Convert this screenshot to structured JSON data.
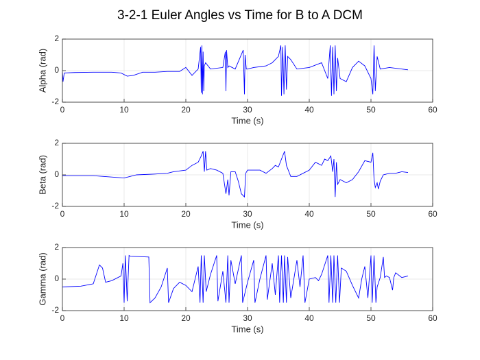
{
  "title": "3-2-1 Euler Angles vs Time for B to A DCM",
  "chart_data": [
    {
      "type": "line",
      "xlabel": "Time (s)",
      "ylabel": "Alpha (rad)",
      "x": [
        0,
        0.1,
        0.3,
        2,
        5,
        8,
        9.5,
        10.5,
        11.5,
        13,
        15,
        17,
        19,
        20,
        21,
        22,
        22.4,
        22.5,
        22.6,
        22.7,
        22.8,
        22.9,
        23,
        23.2,
        24,
        26,
        26.4,
        26.5,
        26.6,
        26.8,
        27,
        28,
        29.3,
        29.5,
        29.6,
        29.8,
        30,
        31,
        33,
        34,
        35,
        35.4,
        35.5,
        35.7,
        35.9,
        36.1,
        36.3,
        36.5,
        37,
        38,
        40,
        42,
        43,
        43.4,
        43.6,
        43.8,
        44,
        44.2,
        44.4,
        44.6,
        45,
        46,
        47,
        48,
        49,
        50,
        50.3,
        50.5,
        50.7,
        51,
        51.5,
        53,
        56
      ],
      "series": [
        {
          "color": "#0000ff",
          "values": [
            -0.1,
            -0.7,
            -0.15,
            -0.12,
            -0.1,
            -0.1,
            -0.15,
            -0.35,
            -0.3,
            -0.1,
            -0.1,
            -0.05,
            -0.05,
            0.2,
            -0.3,
            0.1,
            1.5,
            -1.4,
            1.6,
            -1.5,
            1.2,
            -1.3,
            0.3,
            0.5,
            0.1,
            0.2,
            1.2,
            -1.3,
            1.3,
            0.2,
            0.3,
            0.1,
            1.3,
            -1.5,
            1.0,
            0.1,
            0.1,
            0.2,
            0.3,
            0.5,
            0.9,
            1.6,
            -1.6,
            1.5,
            -1.5,
            1.6,
            -1.2,
            0.9,
            0.7,
            0.1,
            0.2,
            0.5,
            -0.5,
            1.6,
            -1.6,
            1.5,
            -1.5,
            1.6,
            -1.3,
            0.8,
            -0.5,
            -0.7,
            0.2,
            0.6,
            0.3,
            -0.5,
            -1.5,
            1.6,
            -1.3,
            0.9,
            0.1,
            0.2,
            0.05
          ]
        }
      ],
      "xlim": [
        0,
        60
      ],
      "ylim": [
        -2,
        2
      ],
      "xticks": [
        0,
        10,
        20,
        30,
        40,
        50,
        60
      ],
      "yticks": [
        -2,
        0,
        2
      ],
      "grid": true
    },
    {
      "type": "line",
      "xlabel": "Time (s)",
      "ylabel": "Beta (rad)",
      "x": [
        0,
        5,
        10,
        12,
        15,
        17,
        18,
        20,
        21,
        22,
        22.5,
        22.8,
        23,
        23.2,
        23.4,
        24,
        25,
        26,
        26.5,
        26.8,
        27,
        27.3,
        28,
        28.5,
        29,
        29.5,
        29.7,
        30,
        32,
        33,
        34,
        34.5,
        35,
        35.5,
        36,
        36.3,
        36.5,
        37,
        38,
        39,
        40,
        41,
        42,
        42.5,
        43,
        43.5,
        43.8,
        44,
        44.2,
        44.4,
        44.6,
        45,
        46,
        47,
        48,
        49,
        50,
        50.3,
        50.5,
        50.7,
        51,
        51.2,
        51.5,
        52,
        53,
        54,
        55,
        56
      ],
      "series": [
        {
          "color": "#0000ff",
          "values": [
            -0.05,
            -0.05,
            -0.2,
            0,
            0.05,
            0.1,
            0.2,
            0.3,
            0.6,
            0.8,
            1.2,
            1.5,
            0.2,
            1.5,
            0.3,
            0.4,
            0.3,
            0.1,
            -1.2,
            -0.3,
            -1.3,
            0.2,
            0.2,
            -0.4,
            -1.2,
            -1.4,
            0.1,
            0.3,
            0.3,
            0.1,
            0.4,
            0.6,
            0.5,
            1.0,
            1.5,
            0.6,
            0.4,
            -0.1,
            -0.1,
            0.1,
            0.3,
            0.8,
            0.6,
            1.0,
            0.9,
            1.2,
            0.2,
            1.0,
            -1.4,
            0.8,
            -0.6,
            -0.3,
            -0.5,
            -0.3,
            0.2,
            0.9,
            0.8,
            1.4,
            -0.3,
            -0.8,
            -0.5,
            -0.9,
            -0.4,
            0.0,
            0.1,
            0.1,
            0.2,
            0.15
          ]
        }
      ],
      "xlim": [
        0,
        60
      ],
      "ylim": [
        -2,
        2
      ],
      "xticks": [
        0,
        10,
        20,
        30,
        40,
        50,
        60
      ],
      "yticks": [
        -2,
        0,
        2
      ],
      "grid": true
    },
    {
      "type": "line",
      "xlabel": "Time (s)",
      "ylabel": "Gamma (rad)",
      "x": [
        0,
        3,
        5,
        6,
        6.5,
        7,
        8,
        9.5,
        9.8,
        10,
        10.2,
        10.5,
        10.8,
        11,
        14,
        14.2,
        15,
        16,
        17,
        17.2,
        18,
        19,
        20,
        21,
        22,
        22.3,
        22.5,
        22.8,
        23,
        23.3,
        24,
        25,
        25.2,
        26,
        26.5,
        26.8,
        27,
        27.3,
        28,
        29,
        29.2,
        30,
        31,
        31.2,
        32,
        33,
        33.2,
        34,
        34.5,
        35,
        35.2,
        35.5,
        35.8,
        36,
        36.3,
        36.5,
        37,
        38,
        38.5,
        39,
        39.3,
        40,
        41,
        41.5,
        42,
        43,
        43.2,
        43.5,
        43.8,
        44,
        44.3,
        44.6,
        44.9,
        45.2,
        46,
        47,
        48,
        48.5,
        49,
        49.5,
        50,
        50.2,
        50.5,
        50.8,
        51,
        51.5,
        52,
        52.2,
        52.5,
        53,
        53.5,
        53.7,
        54,
        55,
        56
      ],
      "series": [
        {
          "color": "#0000ff",
          "values": [
            -0.5,
            -0.45,
            -0.3,
            0.9,
            0.7,
            -0.2,
            -0.1,
            0.2,
            1.0,
            -1.5,
            1.5,
            -1.4,
            1.5,
            1.45,
            1.4,
            -1.5,
            -1.2,
            -0.5,
            0.7,
            -1.5,
            -0.6,
            -0.2,
            -0.4,
            -0.8,
            0.8,
            -1.5,
            1.5,
            -1.5,
            1.5,
            -0.8,
            0.3,
            1.5,
            -1.4,
            0.5,
            -1.5,
            1.5,
            -1.5,
            1.2,
            -0.3,
            1.5,
            -1.5,
            -0.2,
            1.2,
            -1.5,
            0,
            1.5,
            -1.3,
            1.0,
            -1.0,
            1.5,
            -1.5,
            1.5,
            -1.5,
            1.5,
            -1.5,
            1.4,
            -1.2,
            1.2,
            -0.5,
            1.5,
            -1.5,
            0,
            0.1,
            -0.1,
            0.3,
            1.5,
            -1.5,
            1.5,
            -1.5,
            1.5,
            -1.5,
            1.5,
            -1.5,
            0.7,
            0.5,
            -0.4,
            -1.2,
            0.0,
            0.8,
            -1.2,
            1.5,
            -1.5,
            1.5,
            -1.5,
            -0.5,
            0.1,
            1.4,
            0.1,
            0.2,
            0.1,
            -0.7,
            0.1,
            0.4,
            0.1,
            0.2
          ]
        }
      ],
      "xlim": [
        0,
        60
      ],
      "ylim": [
        -2,
        2
      ],
      "xticks": [
        0,
        10,
        20,
        30,
        40,
        50,
        60
      ],
      "yticks": [
        -2,
        0,
        2
      ],
      "grid": true
    }
  ]
}
